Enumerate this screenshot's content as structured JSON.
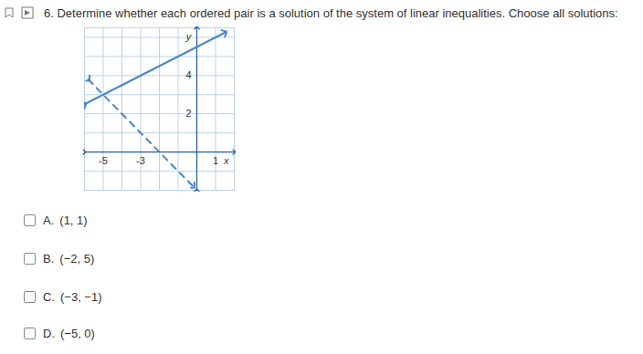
{
  "header": {
    "number": "6.",
    "text": "Determine whether each ordered pair is a solution of the system of linear inequalities. Choose all solutions:"
  },
  "chart_data": {
    "type": "line",
    "xlabel": "x",
    "ylabel": "y",
    "xlim": [
      -6,
      2
    ],
    "ylim": [
      -2,
      6.5
    ],
    "xticks": [
      -5,
      -3,
      1
    ],
    "yticks": [
      2,
      4
    ],
    "grid": true,
    "series": [
      {
        "color": "#4a86c8",
        "line_style": "solid",
        "marker": "arrow",
        "x": [
          -6,
          1.5
        ],
        "values": [
          2.5,
          6.25
        ]
      },
      {
        "color": "#4a86c8",
        "line_style": "dashed",
        "marker": "arrow",
        "x": [
          -5.8,
          -0.2
        ],
        "values": [
          3.8,
          -1.8
        ]
      }
    ]
  },
  "options": [
    {
      "letter": "A.",
      "pair": "(1, 1)"
    },
    {
      "letter": "B.",
      "pair": "(−2, 5)"
    },
    {
      "letter": "C.",
      "pair": "(−3, −1)"
    },
    {
      "letter": "D.",
      "pair": "(−5, 0)"
    }
  ]
}
